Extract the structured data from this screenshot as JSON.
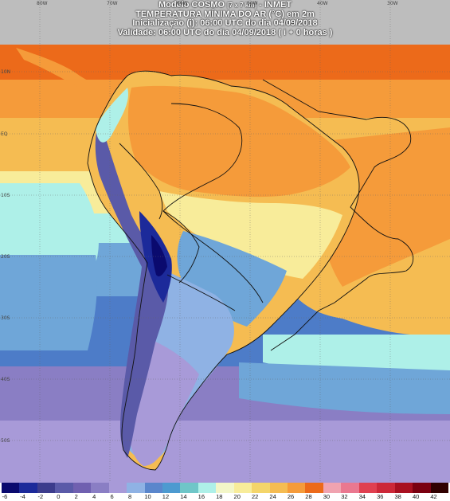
{
  "header": {
    "line1_model": "Modelo COSMO",
    "line1_res": "[7 x 7 km]",
    "line1_inst": "- INMET",
    "line2": "TEMPERATURA MÍNIMA DO AR (°C) em 2m",
    "line3": "Inicialização (i): 06:00 UTC do dia 04/09/2018",
    "line4": "Validade: 06:00 UTC do dia 04/09/2018 ( i + 0 horas )"
  },
  "axes": {
    "top_lon": [
      "80W",
      "70W",
      "60W",
      "50W",
      "40W",
      "30W"
    ],
    "left_lat": [
      "10N",
      "EQ",
      "10S",
      "20S",
      "30S",
      "40S",
      "50S"
    ]
  },
  "legend": {
    "ticks": [
      "-6",
      "-4",
      "-2",
      "0",
      "2",
      "4",
      "6",
      "8",
      "10",
      "12",
      "14",
      "16",
      "18",
      "20",
      "22",
      "24",
      "26",
      "28",
      "30",
      "32",
      "34",
      "36",
      "38",
      "40",
      "42"
    ],
    "colors": [
      "#0a0a6e",
      "#1c2a9a",
      "#3c3c8c",
      "#5a5aa8",
      "#7060b0",
      "#8a7ec4",
      "#a89ad8",
      "#8fb2e4",
      "#5a86cc",
      "#4d9ad0",
      "#6fc6c8",
      "#aef0e8",
      "#f3f6c8",
      "#f8ec9a",
      "#f4d56a",
      "#f5bc52",
      "#f59b3a",
      "#ec6a1a",
      "#f0a3b0",
      "#ea7890",
      "#e04050",
      "#cc2838",
      "#a81020",
      "#7a0010",
      "#300000"
    ]
  },
  "map": {
    "ocean_colors": [
      "#ec6a1a",
      "#f59b3a",
      "#f5bc52",
      "#f8ec9a",
      "#aef0e8",
      "#6fa6d8",
      "#4d7cc8",
      "#8a7ec4",
      "#a89ad8"
    ]
  }
}
